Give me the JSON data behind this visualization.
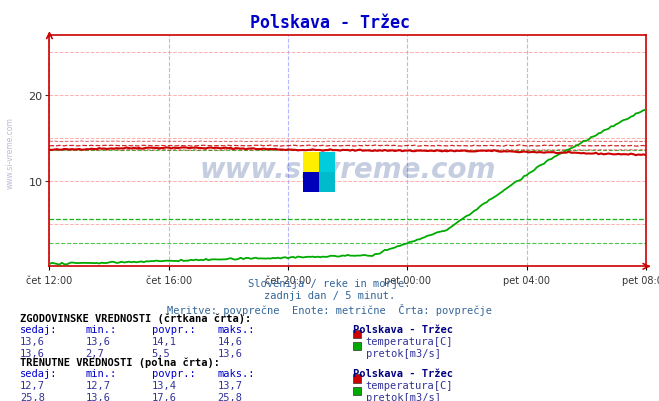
{
  "title": "Polskava - Tržec",
  "title_color": "#0000cc",
  "fig_bg_color": "#ffffff",
  "plot_bg_color": "#ffffff",
  "subtitle_lines": [
    "Slovenija / reke in morje.",
    "zadnji dan / 5 minut.",
    "Meritve: povprečne  Enote: metrične  Črta: povprečje"
  ],
  "xlabel_ticks": [
    "čet 12:00",
    "čet 16:00",
    "čet 20:00",
    "pet 00:00",
    "pet 04:00",
    "pet 08:00"
  ],
  "xtick_positions": [
    0,
    48,
    96,
    144,
    192,
    240
  ],
  "ylim": [
    0,
    27
  ],
  "yticks": [
    10,
    20
  ],
  "n_points": 289,
  "temp_dashed_avg": 14.1,
  "temp_dashed_min": 13.6,
  "temp_dashed_max": 14.6,
  "flow_dashed_avg": 5.5,
  "flow_dashed_min": 2.7,
  "flow_dashed_max": 13.6,
  "red_color": "#cc0000",
  "green_color": "#00aa00",
  "dark_green_color": "#006600",
  "grid_h_color": "#ff9999",
  "grid_v_color": "#9999ff",
  "table_hist": {
    "rows": [
      {
        "sedaj": "13,6",
        "min": "13,6",
        "povpr": "14,1",
        "maks": "14,6",
        "label": "temperatura[C]",
        "color": "#cc0000"
      },
      {
        "sedaj": "13,6",
        "min": "2,7",
        "povpr": "5,5",
        "maks": "13,6",
        "label": "pretok[m3/s]",
        "color": "#00aa00"
      }
    ]
  },
  "table_curr": {
    "rows": [
      {
        "sedaj": "12,7",
        "min": "12,7",
        "povpr": "13,4",
        "maks": "13,7",
        "label": "temperatura[C]",
        "color": "#cc0000"
      },
      {
        "sedaj": "25,8",
        "min": "13,6",
        "povpr": "17,6",
        "maks": "25,8",
        "label": "pretok[m3/s]",
        "color": "#00aa00"
      }
    ]
  }
}
